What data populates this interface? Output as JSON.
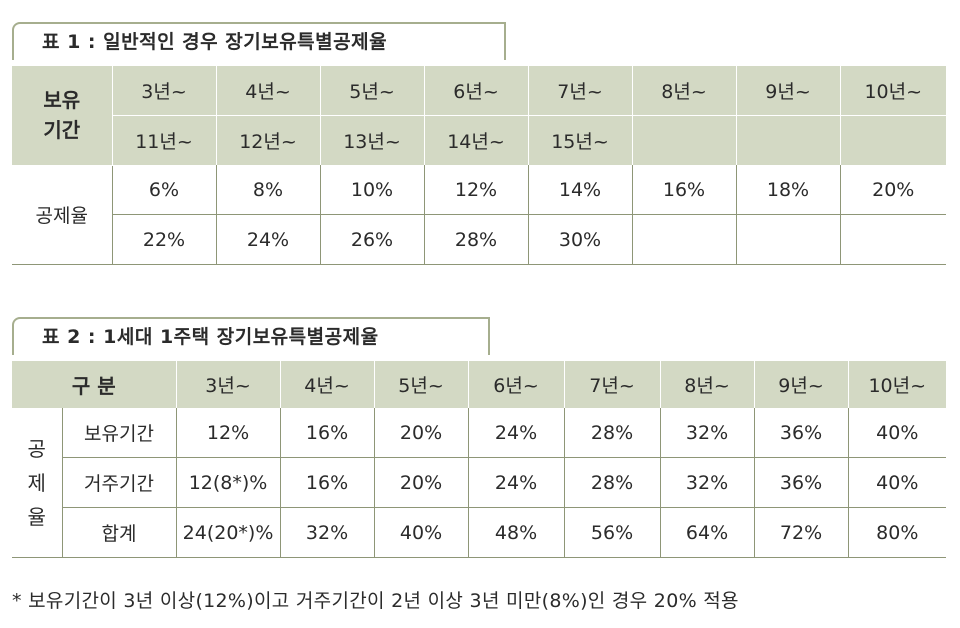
{
  "table1": {
    "title": "표 1 : 일반적인 경우 장기보유특별공제율",
    "holding_label_line1": "보유",
    "holding_label_line2": "기간",
    "periods_row1": [
      "3년~",
      "4년~",
      "5년~",
      "6년~",
      "7년~",
      "8년~",
      "9년~",
      "10년~"
    ],
    "periods_row2": [
      "11년~",
      "12년~",
      "13년~",
      "14년~",
      "15년~",
      "",
      "",
      ""
    ],
    "rate_label": "공제율",
    "rates_row1": [
      "6%",
      "8%",
      "10%",
      "12%",
      "14%",
      "16%",
      "18%",
      "20%"
    ],
    "rates_row2": [
      "22%",
      "24%",
      "26%",
      "28%",
      "30%",
      "",
      "",
      ""
    ]
  },
  "table2": {
    "title": "표 2 : 1세대 1주택 장기보유특별공제율",
    "header_label": "구 분",
    "periods": [
      "3년~",
      "4년~",
      "5년~",
      "6년~",
      "7년~",
      "8년~",
      "9년~",
      "10년~"
    ],
    "group_label_chars": [
      "공",
      "제",
      "율"
    ],
    "rows": [
      {
        "label": "보유기간",
        "values": [
          "12%",
          "16%",
          "20%",
          "24%",
          "28%",
          "32%",
          "36%",
          "40%"
        ]
      },
      {
        "label": "거주기간",
        "values": [
          "12(8*)%",
          "16%",
          "20%",
          "24%",
          "28%",
          "32%",
          "36%",
          "40%"
        ]
      },
      {
        "label": "합계",
        "values": [
          "24(20*)%",
          "32%",
          "40%",
          "48%",
          "56%",
          "64%",
          "72%",
          "80%"
        ]
      }
    ]
  },
  "footnote": "* 보유기간이 3년 이상(12%)이고 거주기간이 2년 이상 3년 미만(8%)인 경우 20% 적용",
  "colors": {
    "header_bg": "#d3d9c4",
    "rule": "#8e9677",
    "tab_border": "#a6ae8e"
  }
}
